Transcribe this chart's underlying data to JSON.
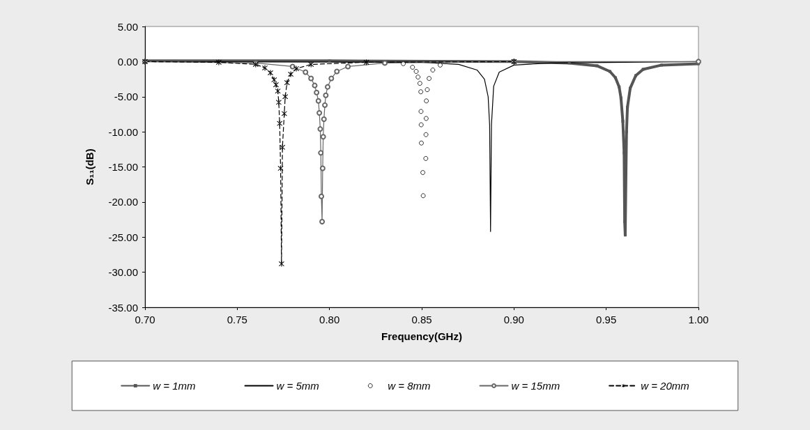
{
  "chart_data": {
    "type": "line",
    "xlabel": "Frequency(GHz)",
    "ylabel": "S₁₁(dB)",
    "xlim": [
      0.7,
      1.0
    ],
    "ylim": [
      -35,
      5
    ],
    "xticks": [
      {
        "value": 0.7,
        "label": "0.70"
      },
      {
        "value": 0.75,
        "label": "0.75"
      },
      {
        "value": 0.8,
        "label": "0.80"
      },
      {
        "value": 0.85,
        "label": "0.85"
      },
      {
        "value": 0.9,
        "label": "0.90"
      },
      {
        "value": 0.95,
        "label": "0.95"
      },
      {
        "value": 1.0,
        "label": "1.00"
      }
    ],
    "yticks": [
      {
        "value": 5,
        "label": "5.00"
      },
      {
        "value": 0,
        "label": "0.00"
      },
      {
        "value": -5,
        "label": "-5.00"
      },
      {
        "value": -10,
        "label": "-10.00"
      },
      {
        "value": -15,
        "label": "-15.00"
      },
      {
        "value": -20,
        "label": "-20.00"
      },
      {
        "value": -25,
        "label": "-25.00"
      },
      {
        "value": -30,
        "label": "-30.00"
      },
      {
        "value": -35,
        "label": "-35.00"
      }
    ],
    "grid": false,
    "legend": "bottom",
    "series": [
      {
        "name": "w = 1mm",
        "color": "#555555",
        "marker": "square",
        "line_style": "solid",
        "x": [
          0.7,
          0.8,
          0.9,
          0.93,
          0.945,
          0.952,
          0.955,
          0.957,
          0.958,
          0.959,
          0.9597,
          0.96,
          0.9603,
          0.9607,
          0.961,
          0.9615,
          0.963,
          0.966,
          0.97,
          0.98,
          1.0
        ],
        "values": [
          0.1,
          0.1,
          0,
          -0.2,
          -0.6,
          -1.4,
          -2.3,
          -3.6,
          -5.2,
          -8.5,
          -13,
          -22.8,
          -24.7,
          -16,
          -10,
          -6.5,
          -3.8,
          -2,
          -1.1,
          -0.5,
          -0.3
        ]
      },
      {
        "name": "w = 5mm",
        "color": "#000000",
        "marker": "none",
        "line_style": "solid",
        "x": [
          0.7,
          0.85,
          0.87,
          0.88,
          0.884,
          0.886,
          0.8868,
          0.8873,
          0.8878,
          0.889,
          0.892,
          0.9,
          0.92,
          1.0
        ],
        "values": [
          0,
          -0.1,
          -0.4,
          -1.2,
          -2.5,
          -5,
          -9,
          -24.2,
          -9,
          -3.5,
          -1.5,
          -0.5,
          -0.2,
          0
        ]
      },
      {
        "name": "w = 8mm",
        "type": "scatter",
        "color": "#000000",
        "marker": "circle",
        "x": [
          0.84,
          0.845,
          0.847,
          0.848,
          0.849,
          0.8495,
          0.8525,
          0.8496,
          0.8524,
          0.8497,
          0.8523,
          0.8498,
          0.8522,
          0.8506,
          0.8508,
          0.853,
          0.854,
          0.856,
          0.86
        ],
        "values": [
          -0.3,
          -0.8,
          -1.4,
          -2.2,
          -3.1,
          -4.3,
          -5.6,
          -7.1,
          -8.1,
          -9.0,
          -10.4,
          -11.6,
          -13.8,
          -15.8,
          -19.1,
          -4.0,
          -2.4,
          -1.2,
          -0.5
        ]
      },
      {
        "name": "w = 15mm",
        "color": "#666666",
        "marker": "circle",
        "line_style": "solid",
        "x": [
          0.7,
          0.76,
          0.78,
          0.787,
          0.79,
          0.792,
          0.793,
          0.794,
          0.7945,
          0.795,
          0.7953,
          0.7956,
          0.796,
          0.7963,
          0.7966,
          0.797,
          0.7975,
          0.798,
          0.799,
          0.801,
          0.804,
          0.81,
          0.83,
          0.9,
          1.0
        ],
        "values": [
          0,
          -0.2,
          -0.7,
          -1.5,
          -2.4,
          -3.4,
          -4.4,
          -5.6,
          -7.3,
          -9.6,
          -13,
          -19.2,
          -22.8,
          -15.2,
          -10.7,
          -8.2,
          -6.2,
          -4.8,
          -3.6,
          -2.4,
          -1.4,
          -0.7,
          -0.2,
          0,
          0
        ]
      },
      {
        "name": "w = 20mm",
        "color": "#000000",
        "marker": "cross",
        "line_style": "dashed",
        "x": [
          0.7,
          0.74,
          0.76,
          0.765,
          0.768,
          0.77,
          0.771,
          0.772,
          0.7725,
          0.773,
          0.7735,
          0.774,
          0.7745,
          0.7755,
          0.776,
          0.777,
          0.779,
          0.782,
          0.79,
          0.82,
          0.9
        ],
        "values": [
          0,
          -0.1,
          -0.4,
          -0.9,
          -1.6,
          -2.6,
          -3.3,
          -4.2,
          -5.8,
          -8.8,
          -15.2,
          -28.8,
          -12.2,
          -7.4,
          -5,
          -3,
          -1.8,
          -1,
          -0.4,
          -0.1,
          0
        ]
      }
    ]
  }
}
